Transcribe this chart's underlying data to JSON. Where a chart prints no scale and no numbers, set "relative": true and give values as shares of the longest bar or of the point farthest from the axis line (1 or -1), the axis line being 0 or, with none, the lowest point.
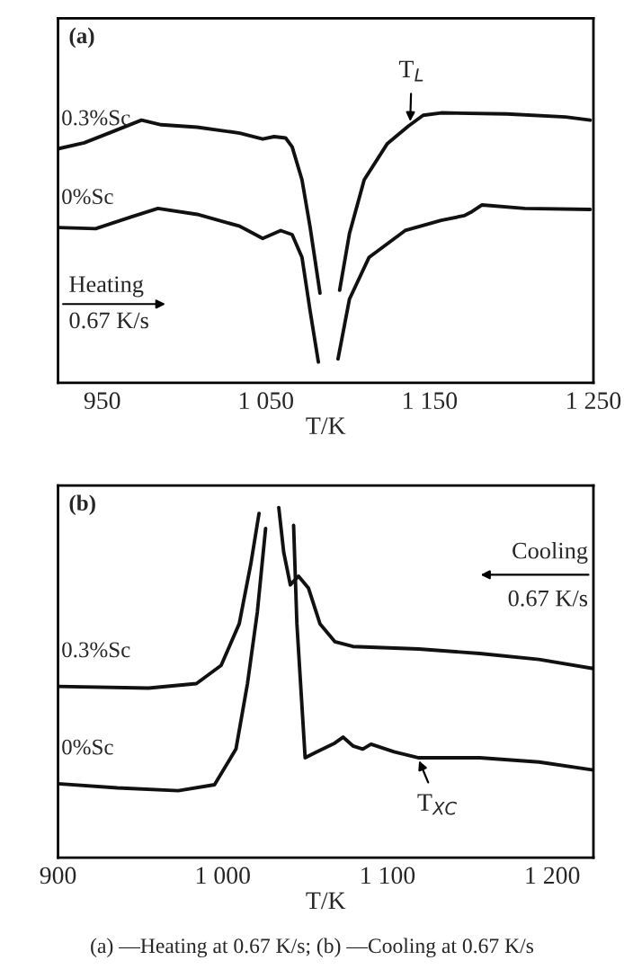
{
  "chart_data": [
    {
      "type": "line",
      "title": "(a)",
      "xlabel": "T/K",
      "relative": true,
      "xlim": [
        923,
        1250
      ],
      "xticks": [
        950,
        {
          "value": 1050,
          "label": "1 050"
        },
        {
          "value": 1150,
          "label": "1 150"
        },
        {
          "value": 1250,
          "label": "1 250"
        }
      ],
      "tick_labels": "x",
      "grid": false,
      "legend": false,
      "series": [
        {
          "name": "0.3%Sc",
          "color": "#111111",
          "x": [
            923,
            939,
            954,
            974,
            986,
            1008,
            1034,
            1048,
            1055,
            1062,
            1066,
            1072,
            1077,
            1083,
            1089,
            1095,
            1101,
            1110,
            1124,
            1137,
            1146,
            1157,
            1197,
            1233,
            1248
          ],
          "values": [
            0.867,
            0.889,
            0.925,
            0.973,
            0.956,
            0.947,
            0.925,
            0.903,
            0.912,
            0.907,
            0.874,
            0.752,
            0.575,
            0.332,
            null,
            0.343,
            0.553,
            0.752,
            0.885,
            0.951,
            0.991,
            1.0,
            0.996,
            0.985,
            0.973
          ]
        },
        {
          "name": "0%Sc",
          "color": "#111111",
          "x": [
            923,
            946,
            968,
            984,
            1008,
            1034,
            1048,
            1059,
            1066,
            1072,
            1077,
            1082,
            1088,
            1094,
            1101,
            1113,
            1135,
            1157,
            1171,
            1175,
            1182,
            1208,
            1248
          ],
          "values": [
            0.575,
            0.571,
            0.615,
            0.646,
            0.624,
            0.58,
            0.535,
            0.564,
            0.549,
            0.465,
            0.265,
            0.077,
            null,
            0.088,
            0.31,
            0.465,
            0.564,
            0.602,
            0.619,
            0.631,
            0.659,
            0.646,
            0.642
          ]
        }
      ],
      "annotations": [
        "Heating",
        "0.67 K/s",
        {
          "text": "T$_{L}$",
          "x": 1138,
          "y": 0.95
        }
      ]
    },
    {
      "type": "line",
      "title": "(b)",
      "xlabel": "T/K",
      "relative": true,
      "xlim": [
        900,
        1225
      ],
      "xticks": [
        900,
        {
          "value": 1000,
          "label": "1 000"
        },
        {
          "value": 1100,
          "label": "1 100"
        },
        {
          "value": 1200,
          "label": "1 200"
        }
      ],
      "tick_labels": "x",
      "grid": false,
      "legend": false,
      "series": [
        {
          "name": "0.3%Sc",
          "color": "#111111",
          "x": [
            900,
            955,
            984,
            999,
            1010,
            1017,
            1022,
            1028,
            1034,
            1037,
            1041,
            1046,
            1052,
            1059,
            1068,
            1079,
            1119,
            1156,
            1192,
            1225
          ],
          "values": [
            0.489,
            0.484,
            0.497,
            0.549,
            0.668,
            0.838,
            0.983,
            null,
            1.0,
            0.872,
            0.779,
            0.804,
            0.77,
            0.668,
            0.617,
            0.603,
            0.596,
            0.583,
            0.566,
            0.54
          ]
        },
        {
          "name": "0%Sc",
          "color": "#111111",
          "x": [
            900,
            936,
            973,
            995,
            1008,
            1015,
            1021,
            1026,
            1035,
            1043,
            1045,
            1050,
            1057,
            1068,
            1073,
            1079,
            1085,
            1090,
            1104,
            1119,
            1156,
            1192,
            1225
          ],
          "values": [
            0.211,
            0.199,
            0.191,
            0.208,
            0.31,
            0.497,
            0.702,
            0.94,
            null,
            0.949,
            0.668,
            0.285,
            0.302,
            0.327,
            0.344,
            0.319,
            0.31,
            0.324,
            0.302,
            0.285,
            0.285,
            0.273,
            0.25
          ]
        }
      ],
      "annotations": [
        "Cooling",
        "0.67 K/s",
        {
          "text": "T$_{XC}$",
          "x": 1118,
          "y": 0.29
        },
        "(a) —Heating at 0.67 K/s; (b) —Cooling at 0.67 K/s"
      ]
    }
  ]
}
